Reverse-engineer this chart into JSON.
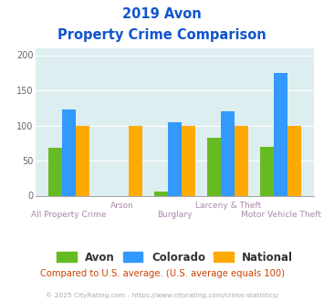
{
  "title_line1": "2019 Avon",
  "title_line2": "Property Crime Comparison",
  "categories": [
    "All Property Crime",
    "Arson",
    "Burglary",
    "Larceny & Theft",
    "Motor Vehicle Theft"
  ],
  "avon": [
    68,
    0,
    6,
    82,
    70
  ],
  "colorado": [
    123,
    0,
    104,
    120,
    175
  ],
  "national": [
    100,
    100,
    100,
    100,
    100
  ],
  "avon_color": "#66bb22",
  "colorado_color": "#3399ff",
  "national_color": "#ffaa00",
  "bg_color": "#ddeef0",
  "title_color": "#1155cc",
  "xlabel_top_color": "#aa88aa",
  "xlabel_bottom_color": "#aa88aa",
  "legend_label_color": "#333333",
  "footnote_color": "#cc4400",
  "copyright_color": "#aaaaaa",
  "ylim": [
    0,
    210
  ],
  "yticks": [
    0,
    50,
    100,
    150,
    200
  ],
  "footnote": "Compared to U.S. average. (U.S. average equals 100)",
  "copyright": "© 2025 CityRating.com - https://www.cityrating.com/crime-statistics/"
}
